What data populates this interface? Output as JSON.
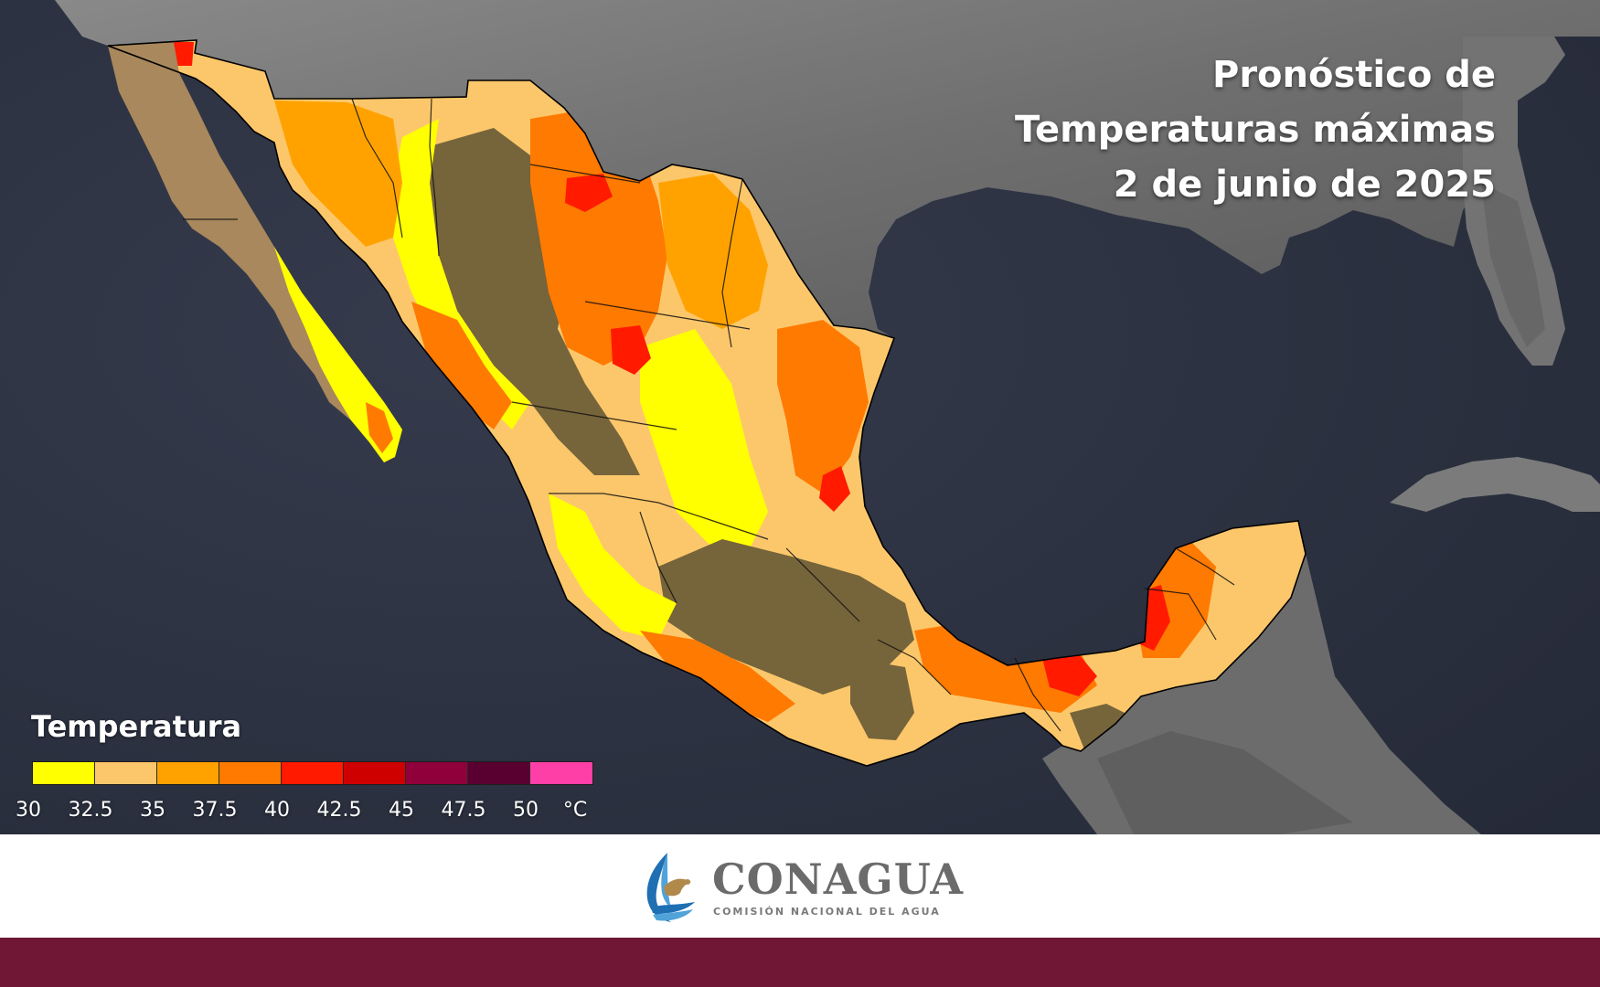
{
  "title": {
    "line1": "Pronóstico de",
    "line2": "Temperaturas máximas",
    "line3": "2 de junio de 2025"
  },
  "legend": {
    "title": "Temperatura",
    "colors": [
      "#ffff00",
      "#fcc76b",
      "#ffa200",
      "#ff7a00",
      "#ff1a00",
      "#cf0000",
      "#90003a",
      "#5a0030",
      "#ff3fa8"
    ],
    "labels": [
      "30",
      "32.5",
      "35",
      "37.5",
      "40",
      "42.5",
      "45",
      "47.5",
      "50"
    ],
    "unit": "°C"
  },
  "map": {
    "ocean_color": "#2a3040",
    "land_color": "#7d7d7d",
    "regions": [
      "baja-california",
      "sonora-chihuahua",
      "noreste",
      "centro",
      "sur",
      "peninsula-yucatan"
    ],
    "colors": {
      "mountain": "#76643a",
      "outline": "#000000"
    }
  },
  "footer": {
    "logo_name": "CONAGUA",
    "logo_subtitle": "COMISIÓN NACIONAL DEL AGUA",
    "band_color": "#6f1734",
    "logo_icon": "eagle-water-icon"
  }
}
